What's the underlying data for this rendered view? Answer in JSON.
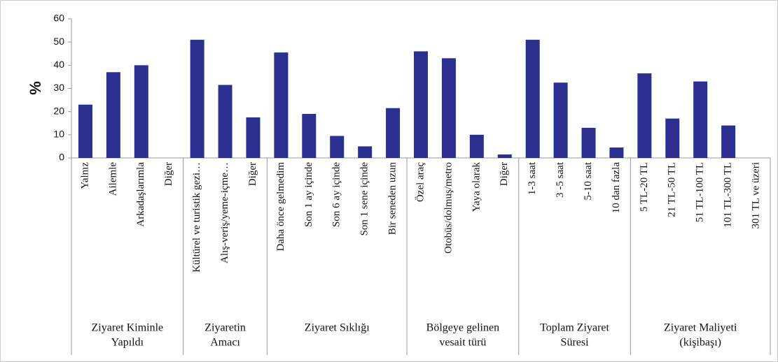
{
  "chart_data": {
    "type": "bar",
    "color": "#2b2f8f",
    "ylabel": "%",
    "ylim": [
      0,
      60
    ],
    "yticks": [
      0,
      10,
      20,
      30,
      40,
      50,
      60
    ],
    "groups": [
      {
        "label": [
          "Ziyaret Kiminle",
          "Yapıldı"
        ],
        "categories": [
          "Yalnız",
          "Ailemle",
          "Arkadaşlarımla",
          "Diğer"
        ],
        "values": [
          23,
          37,
          40,
          0
        ]
      },
      {
        "label": [
          "Ziyaretin",
          "Amacı"
        ],
        "categories": [
          "Kültürel ve turistik gezi…",
          "Alış-veriş/yeme-içme…",
          "Diğer"
        ],
        "values": [
          51,
          31.5,
          17.5
        ]
      },
      {
        "label": [
          "Ziyaret Sıklığı"
        ],
        "categories": [
          "Daha önce gelmedim",
          "Son 1 ay içinde",
          "Son 6 ay içinde",
          "Son 1 sene içinde",
          "Bir seneden uzun"
        ],
        "values": [
          45.5,
          19,
          9.5,
          5,
          21.5
        ]
      },
      {
        "label": [
          "Bölgeye gelinen",
          "vesait türü"
        ],
        "categories": [
          "Özel araç",
          "Otobüs/dolmuş/metro",
          "Yaya olarak",
          "Diğer"
        ],
        "values": [
          46,
          43,
          10,
          1.5
        ]
      },
      {
        "label": [
          "Toplam Ziyaret",
          "Süresi"
        ],
        "categories": [
          "1-3 saat",
          "3 -5 saat",
          "5-10 saat",
          "10 dan fazla"
        ],
        "values": [
          51,
          32.5,
          13,
          4.5
        ]
      },
      {
        "label": [
          "Ziyaret Maliyeti",
          "(kişibaşı)"
        ],
        "categories": [
          "5 TL-20 TL",
          "21 TL-50 TL",
          "51 TL-100 TL",
          "101 TL-300 TL",
          "301 TL ve üzeri"
        ],
        "values": [
          36.5,
          17,
          33,
          14,
          0
        ]
      }
    ]
  }
}
